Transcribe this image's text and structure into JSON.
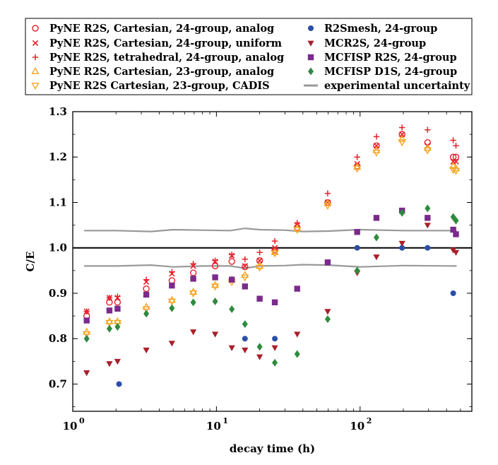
{
  "chart_data": {
    "type": "scatter",
    "xlabel": "decay time (h)",
    "ylabel": "C/E",
    "x_scale": "log",
    "xlim": [
      1,
      600
    ],
    "ylim": [
      0.64,
      1.3
    ],
    "x_ticks": [
      {
        "value": 1,
        "label": "10",
        "sup": "0"
      },
      {
        "value": 10,
        "label": "10",
        "sup": "1"
      },
      {
        "value": 100,
        "label": "10",
        "sup": "2"
      }
    ],
    "y_ticks": [
      0.7,
      0.8,
      0.9,
      1.0,
      1.1,
      1.2,
      1.3
    ],
    "y_tick_labels": [
      "0.7",
      "0.8",
      "0.9",
      "1.0",
      "1.1",
      "1.2",
      "1.3"
    ],
    "grid": false,
    "legend_position": "top-outside",
    "reference_line": {
      "y": 1.0,
      "color": "#000000"
    },
    "series": [
      {
        "name": "PyNE R2S, Cartesian, 24-group, analog",
        "marker": "circle-open",
        "color": "#e8202a",
        "points": [
          [
            1.25,
            0.85
          ],
          [
            1.8,
            0.88
          ],
          [
            2.05,
            0.88
          ],
          [
            3.25,
            0.91
          ],
          [
            4.9,
            0.928
          ],
          [
            6.9,
            0.945
          ],
          [
            9.8,
            0.96
          ],
          [
            12.8,
            0.97
          ],
          [
            15.8,
            0.958
          ],
          [
            20,
            0.972
          ],
          [
            25.5,
            0.995
          ],
          [
            36.5,
            1.045
          ],
          [
            59.5,
            1.1
          ],
          [
            95.5,
            1.18
          ],
          [
            130,
            1.225
          ],
          [
            196,
            1.25
          ],
          [
            295,
            1.232
          ],
          [
            445,
            1.2
          ],
          [
            465,
            1.2
          ]
        ]
      },
      {
        "name": "PyNE R2S, Cartesian, 24-group, uniform",
        "marker": "x",
        "color": "#e8202a",
        "points": [
          [
            1.25,
            0.86
          ],
          [
            1.8,
            0.89
          ],
          [
            2.05,
            0.89
          ],
          [
            3.25,
            0.925
          ],
          [
            4.9,
            0.943
          ],
          [
            6.9,
            0.96
          ],
          [
            9.8,
            0.97
          ],
          [
            12.8,
            0.983
          ],
          [
            15.8,
            0.96
          ],
          [
            20,
            0.972
          ],
          [
            25.5,
            1.0
          ],
          [
            36.5,
            1.05
          ],
          [
            59.5,
            1.1
          ],
          [
            95.5,
            1.185
          ],
          [
            130,
            1.225
          ],
          [
            196,
            1.25
          ],
          [
            295,
            1.225
          ],
          [
            445,
            1.19
          ],
          [
            465,
            1.19
          ]
        ]
      },
      {
        "name": "PyNE R2S, tetrahedral, 24-group, analog",
        "marker": "plus",
        "color": "#e8202a",
        "points": [
          [
            1.25,
            0.86
          ],
          [
            1.8,
            0.89
          ],
          [
            2.05,
            0.893
          ],
          [
            3.25,
            0.93
          ],
          [
            4.9,
            0.947
          ],
          [
            6.9,
            0.965
          ],
          [
            9.8,
            0.972
          ],
          [
            12.8,
            0.985
          ],
          [
            15.8,
            0.975
          ],
          [
            20,
            0.99
          ],
          [
            25.5,
            1.015
          ],
          [
            36.5,
            1.055
          ],
          [
            59.5,
            1.12
          ],
          [
            95.5,
            1.2
          ],
          [
            130,
            1.245
          ],
          [
            196,
            1.265
          ],
          [
            295,
            1.26
          ],
          [
            445,
            1.237
          ],
          [
            465,
            1.225
          ]
        ]
      },
      {
        "name": "PyNE R2S, Cartesian, 23-group, analog",
        "marker": "triangle-up-open",
        "color": "#f5a623",
        "points": [
          [
            1.25,
            0.815
          ],
          [
            1.8,
            0.838
          ],
          [
            2.05,
            0.838
          ],
          [
            3.25,
            0.87
          ],
          [
            4.9,
            0.885
          ],
          [
            6.9,
            0.903
          ],
          [
            9.8,
            0.918
          ],
          [
            12.8,
            0.93
          ],
          [
            15.8,
            0.94
          ],
          [
            20,
            0.96
          ],
          [
            25.5,
            0.99
          ],
          [
            36.5,
            1.043
          ],
          [
            59.5,
            1.098
          ],
          [
            95.5,
            1.178
          ],
          [
            130,
            1.215
          ],
          [
            196,
            1.24
          ],
          [
            295,
            1.22
          ],
          [
            445,
            1.18
          ],
          [
            465,
            1.175
          ]
        ]
      },
      {
        "name": "PyNE R2S Cartesian, 23-group, CADIS",
        "marker": "triangle-down-open",
        "color": "#f5a623",
        "points": [
          [
            1.25,
            0.81
          ],
          [
            1.8,
            0.835
          ],
          [
            2.05,
            0.835
          ],
          [
            3.25,
            0.865
          ],
          [
            4.9,
            0.882
          ],
          [
            6.9,
            0.9
          ],
          [
            9.8,
            0.915
          ],
          [
            12.8,
            0.925
          ],
          [
            15.8,
            0.935
          ],
          [
            20,
            0.957
          ],
          [
            25.5,
            0.988
          ],
          [
            36.5,
            1.04
          ],
          [
            59.5,
            1.093
          ],
          [
            95.5,
            1.175
          ],
          [
            130,
            1.21
          ],
          [
            196,
            1.233
          ],
          [
            295,
            1.215
          ],
          [
            445,
            1.172
          ],
          [
            465,
            1.17
          ]
        ]
      },
      {
        "name": "R2Smesh, 24-group",
        "marker": "circle",
        "color": "#2b4ea8",
        "points": [
          [
            2.1,
            0.7
          ],
          [
            15.8,
            0.8
          ],
          [
            25.5,
            0.8
          ],
          [
            95.5,
            1.0
          ],
          [
            196,
            1.0
          ],
          [
            295,
            1.0
          ],
          [
            445,
            0.9
          ]
        ]
      },
      {
        "name": "MCR2S, 24-group",
        "marker": "triangle-down",
        "color": "#a8202a",
        "points": [
          [
            1.25,
            0.725
          ],
          [
            1.8,
            0.745
          ],
          [
            2.05,
            0.75
          ],
          [
            3.25,
            0.775
          ],
          [
            4.9,
            0.79
          ],
          [
            6.9,
            0.815
          ],
          [
            9.8,
            0.81
          ],
          [
            12.8,
            0.78
          ],
          [
            15.8,
            0.775
          ],
          [
            20,
            0.76
          ],
          [
            25.5,
            0.78
          ],
          [
            36.5,
            0.81
          ],
          [
            59.5,
            0.86
          ],
          [
            95.5,
            0.945
          ],
          [
            130,
            0.98
          ],
          [
            196,
            1.01
          ],
          [
            295,
            1.05
          ],
          [
            445,
            0.995
          ],
          [
            465,
            0.99
          ]
        ]
      },
      {
        "name": "MCFISP R2S, 24-group",
        "marker": "square",
        "color": "#7b2a8c",
        "points": [
          [
            1.25,
            0.84
          ],
          [
            1.8,
            0.862
          ],
          [
            2.05,
            0.866
          ],
          [
            3.25,
            0.897
          ],
          [
            4.9,
            0.917
          ],
          [
            6.9,
            0.932
          ],
          [
            9.8,
            0.935
          ],
          [
            12.8,
            0.93
          ],
          [
            15.8,
            0.915
          ],
          [
            20,
            0.888
          ],
          [
            25.5,
            0.88
          ],
          [
            36.5,
            0.91
          ],
          [
            59.5,
            0.968
          ],
          [
            95.5,
            1.035
          ],
          [
            130,
            1.066
          ],
          [
            196,
            1.082
          ],
          [
            295,
            1.066
          ],
          [
            445,
            1.04
          ],
          [
            465,
            1.03
          ]
        ]
      },
      {
        "name": "MCFISP D1S, 24-group",
        "marker": "diamond",
        "color": "#2e8b3e",
        "points": [
          [
            1.25,
            0.8
          ],
          [
            1.8,
            0.822
          ],
          [
            2.05,
            0.826
          ],
          [
            3.25,
            0.855
          ],
          [
            4.9,
            0.867
          ],
          [
            6.9,
            0.88
          ],
          [
            9.8,
            0.882
          ],
          [
            12.8,
            0.865
          ],
          [
            15.8,
            0.832
          ],
          [
            20,
            0.782
          ],
          [
            25.5,
            0.747
          ],
          [
            36.5,
            0.766
          ],
          [
            59.5,
            0.843
          ],
          [
            95.5,
            0.95
          ],
          [
            130,
            1.023
          ],
          [
            196,
            1.077
          ],
          [
            295,
            1.087
          ],
          [
            445,
            1.068
          ],
          [
            465,
            1.06
          ]
        ]
      },
      {
        "name": "experimental uncertainty",
        "marker": "line",
        "color": "#999999",
        "upper": [
          [
            1.2,
            1.038
          ],
          [
            2,
            1.038
          ],
          [
            3.5,
            1.036
          ],
          [
            5,
            1.04
          ],
          [
            8,
            1.039
          ],
          [
            12.5,
            1.038
          ],
          [
            15.8,
            1.043
          ],
          [
            20,
            1.04
          ],
          [
            30,
            1.039
          ],
          [
            40,
            1.036
          ],
          [
            60,
            1.037
          ],
          [
            100,
            1.04
          ],
          [
            200,
            1.038
          ],
          [
            470,
            1.038
          ]
        ],
        "lower": [
          [
            1.2,
            0.96
          ],
          [
            2,
            0.96
          ],
          [
            3.5,
            0.962
          ],
          [
            5,
            0.958
          ],
          [
            8,
            0.96
          ],
          [
            12.5,
            0.96
          ],
          [
            15.8,
            0.955
          ],
          [
            20,
            0.96
          ],
          [
            30,
            0.961
          ],
          [
            40,
            0.963
          ],
          [
            60,
            0.962
          ],
          [
            100,
            0.958
          ],
          [
            200,
            0.961
          ],
          [
            470,
            0.96
          ]
        ]
      }
    ]
  }
}
